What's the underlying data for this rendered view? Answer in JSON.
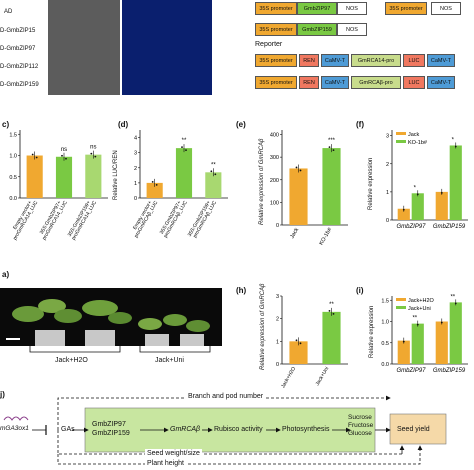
{
  "panel_a": {
    "rows": [
      "AD",
      "D-GmbZIP15",
      "D-GmbZIP97",
      "D-GmbZIP112",
      "D-GmbZIP159"
    ]
  },
  "panel_b_constructs": {
    "effector1": [
      "35S promoter",
      "GmbZIP97",
      "NOS"
    ],
    "effector2": [
      "35S promoter",
      "GmbZIP159",
      "NOS"
    ],
    "effector3": [
      "35S promoter",
      "",
      "NOS"
    ],
    "reporter_label": "Reporter",
    "reporter1": [
      "35S promoter",
      "REN",
      "CaMV-T",
      "GmRCA14-pro",
      "LUC",
      "CaMV-T"
    ],
    "reporter2": [
      "35S promoter",
      "REN",
      "CaMV-T",
      "GmRCAβ-pro",
      "LUC",
      "CaMV-T"
    ]
  },
  "panel_c": {
    "label": "c)",
    "ticks": [
      "0.0",
      "0.5",
      "1.0",
      "1.5"
    ],
    "sig": [
      "",
      "ns",
      "ns"
    ],
    "xticks": [
      "Empty vector+\nproGmRCA14_LUC",
      "35S:GmbZIP97+\nproGmRCA14_LUC",
      "35S:GmbZIP159+\nproGmRCA14_LUC"
    ]
  },
  "panel_d": {
    "label": "(d)",
    "ylabel": "Relative LUC/REN",
    "ticks": [
      "0",
      "1",
      "2",
      "3",
      "4"
    ],
    "sig": [
      "",
      "**",
      "**"
    ],
    "xticks": [
      "Empty vector+\nproGmRCAβ_LUC",
      "35S:GmbZIP97+\nproGmRCAβ_LUC",
      "35S:GmbZIP159+\nproGmRCAβ_LUC"
    ]
  },
  "panel_e": {
    "label": "(e)",
    "ylabel": "Relative expression of GmRCAβ",
    "ticks": [
      "0",
      "100",
      "200",
      "300",
      "400"
    ],
    "sig": [
      "",
      "***"
    ],
    "xticks": [
      "Jack",
      "KO-1b#"
    ]
  },
  "panel_f": {
    "label": "(f)",
    "ylabel": "Relative expression",
    "ticks": [
      "0",
      "1",
      "2",
      "3"
    ],
    "legend": [
      "Jack",
      "KO-1b#"
    ],
    "sig": [
      "*",
      "*"
    ],
    "xticks": [
      "GmbZIP97",
      "GmbZIP159"
    ]
  },
  "panel_g": {
    "label": "a)",
    "captions": [
      "Jack+H2O",
      "Jack+Uni"
    ]
  },
  "panel_h": {
    "label": "(h)",
    "ylabel": "Relative expression of GmRCAβ",
    "ticks": [
      "0",
      "1",
      "2",
      "3"
    ],
    "sig": [
      "",
      "**"
    ],
    "xticks": [
      "Jack+H2O",
      "Jack+Uni"
    ]
  },
  "panel_i": {
    "label": "(i)",
    "ylabel": "Relative expression",
    "ticks": [
      "0.0",
      "0.5",
      "1.0",
      "1.5"
    ],
    "legend": [
      "Jack+H2O",
      "Jack+Uni"
    ],
    "sig": [
      "**",
      "**"
    ],
    "xticks": [
      "GmbZIP97",
      "GmbZIP159"
    ]
  },
  "panel_j": {
    "label": "j)",
    "gene": "mGA3ox1",
    "gas": "GAs",
    "tfs": "GmbZIP97\nGmbZIP159",
    "rca": "GmRCAβ",
    "rubisco": "Rubisco activity",
    "photo": "Photosynthesis",
    "sugars": "Sucrose\nFructose\nGlucose",
    "yield": "Seed yield",
    "branch": "Branch and pod number",
    "seedw": "Seed weight/size",
    "height": "Plant height"
  },
  "colors": {
    "orange": "#f0a830",
    "green": "#7ac943",
    "lightgreen": "#a8d870",
    "red": "#f07860",
    "blue": "#4e9bd6",
    "olive": "#c8dc8c",
    "yield": "#f5d9a8"
  },
  "chart_data": [
    {
      "type": "bar",
      "title": "",
      "categories": [
        "Empty vector+proGmRCA14_LUC",
        "35S:GmbZIP97+proGmRCA14_LUC",
        "35S:GmbZIP159+proGmRCA14_LUC"
      ],
      "values": [
        1.0,
        0.97,
        1.02
      ],
      "ylim": [
        0,
        1.6
      ]
    },
    {
      "type": "bar",
      "title": "",
      "ylabel": "Relative LUC/REN",
      "categories": [
        "Empty vector+proGmRCAβ_LUC",
        "35S:GmbZIP97+proGmRCAβ_LUC",
        "35S:GmbZIP159+proGmRCAβ_LUC"
      ],
      "values": [
        1.0,
        3.3,
        1.7
      ],
      "ylim": [
        0,
        4.5
      ]
    },
    {
      "type": "bar",
      "title": "",
      "ylabel": "Relative expression of GmRCAβ",
      "categories": [
        "Jack",
        "KO-1b#"
      ],
      "values": [
        250,
        340
      ],
      "ylim": [
        0,
        420
      ]
    },
    {
      "type": "bar",
      "title": "",
      "ylabel": "Relative expression",
      "categories": [
        "GmbZIP97",
        "GmbZIP159"
      ],
      "series": [
        {
          "name": "Jack",
          "values": [
            0.4,
            1.0
          ]
        },
        {
          "name": "KO-1b#",
          "values": [
            0.95,
            2.65
          ]
        }
      ],
      "ylim": [
        0,
        3.2
      ]
    },
    {
      "type": "bar",
      "title": "",
      "ylabel": "Relative expression of GmRCAβ",
      "categories": [
        "Jack+H2O",
        "Jack+Uni"
      ],
      "values": [
        1.0,
        2.3
      ],
      "ylim": [
        0,
        3
      ]
    },
    {
      "type": "bar",
      "title": "",
      "ylabel": "Relative expression",
      "categories": [
        "GmbZIP97",
        "GmbZIP159"
      ],
      "series": [
        {
          "name": "Jack+H2O",
          "values": [
            0.55,
            1.0
          ]
        },
        {
          "name": "Jack+Uni",
          "values": [
            0.95,
            1.45
          ]
        }
      ],
      "ylim": [
        0,
        1.6
      ]
    }
  ]
}
